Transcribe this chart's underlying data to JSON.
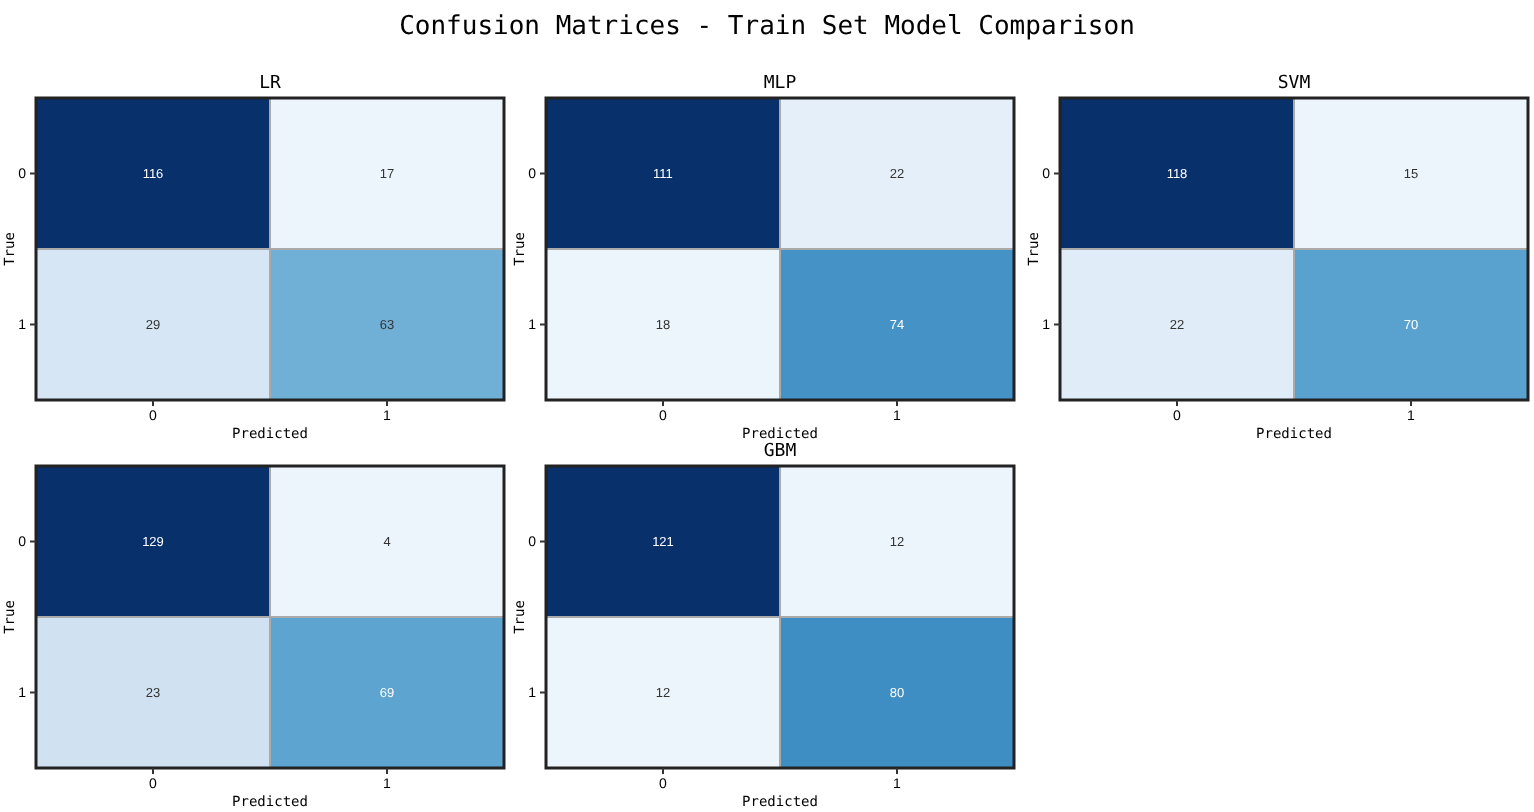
{
  "chart_data": [
    {
      "type": "other",
      "title": "Confusion Matrices - Train Set Model Comparison"
    },
    {
      "type": "heatmap",
      "title": "LR",
      "xlabel": "Predicted",
      "ylabel": "True",
      "categories": [
        "0",
        "1"
      ],
      "y_categories": [
        "0",
        "1"
      ],
      "cells": [
        [
          116,
          17
        ],
        [
          29,
          63
        ]
      ],
      "data_labels": true
    },
    {
      "type": "heatmap",
      "title": "MLP",
      "xlabel": "Predicted",
      "ylabel": "True",
      "categories": [
        "0",
        "1"
      ],
      "y_categories": [
        "0",
        "1"
      ],
      "cells": [
        [
          111,
          22
        ],
        [
          18,
          74
        ]
      ],
      "data_labels": true
    },
    {
      "type": "heatmap",
      "title": "SVM",
      "xlabel": "Predicted",
      "ylabel": "True",
      "categories": [
        "0",
        "1"
      ],
      "y_categories": [
        "0",
        "1"
      ],
      "cells": [
        [
          118,
          15
        ],
        [
          22,
          70
        ]
      ],
      "data_labels": true
    },
    {
      "type": "heatmap",
      "xlabel": "Predicted",
      "ylabel": "True",
      "categories": [
        "0",
        "1"
      ],
      "y_categories": [
        "0",
        "1"
      ],
      "cells": [
        [
          129,
          4
        ],
        [
          23,
          69
        ]
      ],
      "data_labels": true
    },
    {
      "type": "heatmap",
      "title": "GBM",
      "xlabel": "Predicted",
      "ylabel": "True",
      "categories": [
        "0",
        "1"
      ],
      "y_categories": [
        "0",
        "1"
      ],
      "cells": [
        [
          121,
          12
        ],
        [
          12,
          80
        ]
      ],
      "data_labels": true
    }
  ]
}
